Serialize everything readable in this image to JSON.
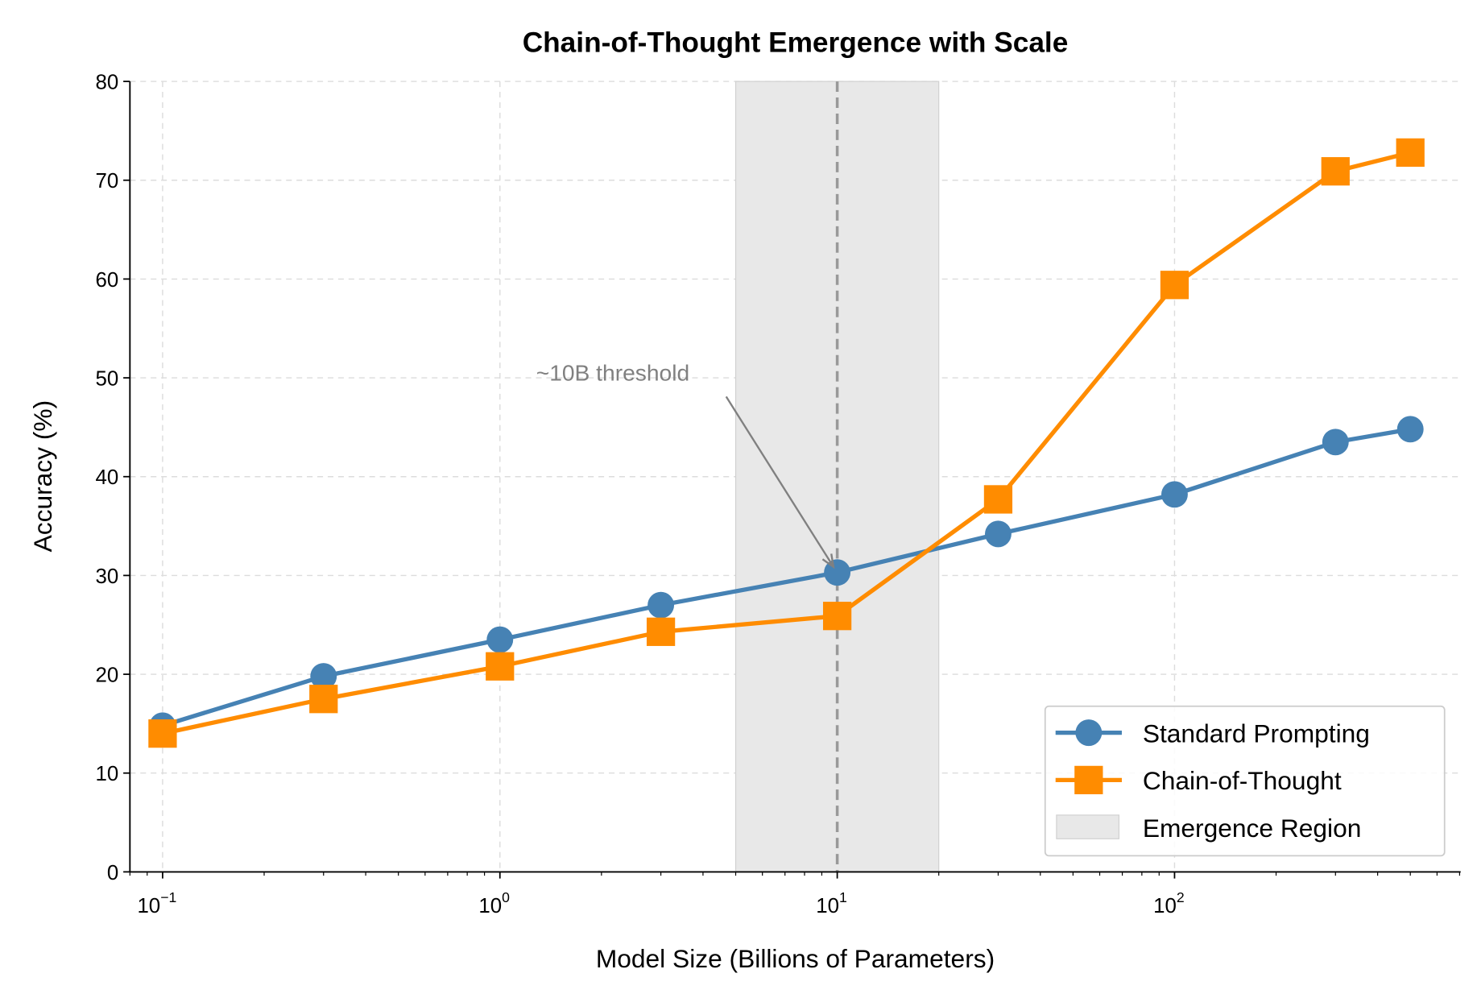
{
  "chart_data": {
    "type": "line",
    "title": "Chain-of-Thought Emergence with Scale",
    "xlabel": "Model Size (Billions of Parameters)",
    "ylabel": "Accuracy (%)",
    "xscale": "log",
    "xlim": [
      0.08,
      705
    ],
    "ylim": [
      0,
      80
    ],
    "grid": true,
    "x": [
      0.1,
      0.3,
      1,
      3,
      10,
      30,
      100,
      300,
      500
    ],
    "series": [
      {
        "name": "Standard Prompting",
        "color": "#4682b4",
        "marker": "circle",
        "values": [
          14.8,
          19.8,
          23.5,
          27.0,
          30.3,
          34.2,
          38.2,
          43.5,
          44.8
        ]
      },
      {
        "name": "Chain-of-Thought",
        "color": "#ff8c00",
        "marker": "square",
        "values": [
          14.0,
          17.5,
          20.8,
          24.3,
          25.9,
          37.7,
          59.4,
          70.9,
          72.8
        ]
      }
    ],
    "shaded_region": {
      "name": "Emergence Region",
      "x_range": [
        5,
        20
      ],
      "color": "#e8e8e8"
    },
    "vline": {
      "x": 10,
      "style": "dashed",
      "color": "#999999"
    },
    "annotation": {
      "text": "~10B threshold",
      "text_at": [
        2,
        50.5
      ],
      "points_to": [
        10,
        30.3
      ]
    },
    "yticks": [
      "0",
      "10",
      "20",
      "30",
      "40",
      "50",
      "60",
      "70",
      "80"
    ],
    "xticks": [
      {
        "base": "10",
        "exp": "−1",
        "value": 0.1
      },
      {
        "base": "10",
        "exp": "0",
        "value": 1
      },
      {
        "base": "10",
        "exp": "1",
        "value": 10
      },
      {
        "base": "10",
        "exp": "2",
        "value": 100
      }
    ],
    "legend_position": "lower-right"
  }
}
